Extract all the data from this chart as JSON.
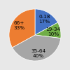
{
  "labels": [
    "0-18\n17%",
    "19-34\n10%",
    "35-64\n40%",
    "66+\n33%"
  ],
  "sizes": [
    17,
    10,
    40,
    33
  ],
  "colors": [
    "#4472c4",
    "#70ad47",
    "#a6a6a6",
    "#ed7d31"
  ],
  "startangle": 90,
  "figsize": [
    1.0,
    1.0
  ],
  "dpi": 100,
  "bg_color": "#e8e8e8",
  "label_fontsize": 5.2,
  "labeldistance": 0.72
}
